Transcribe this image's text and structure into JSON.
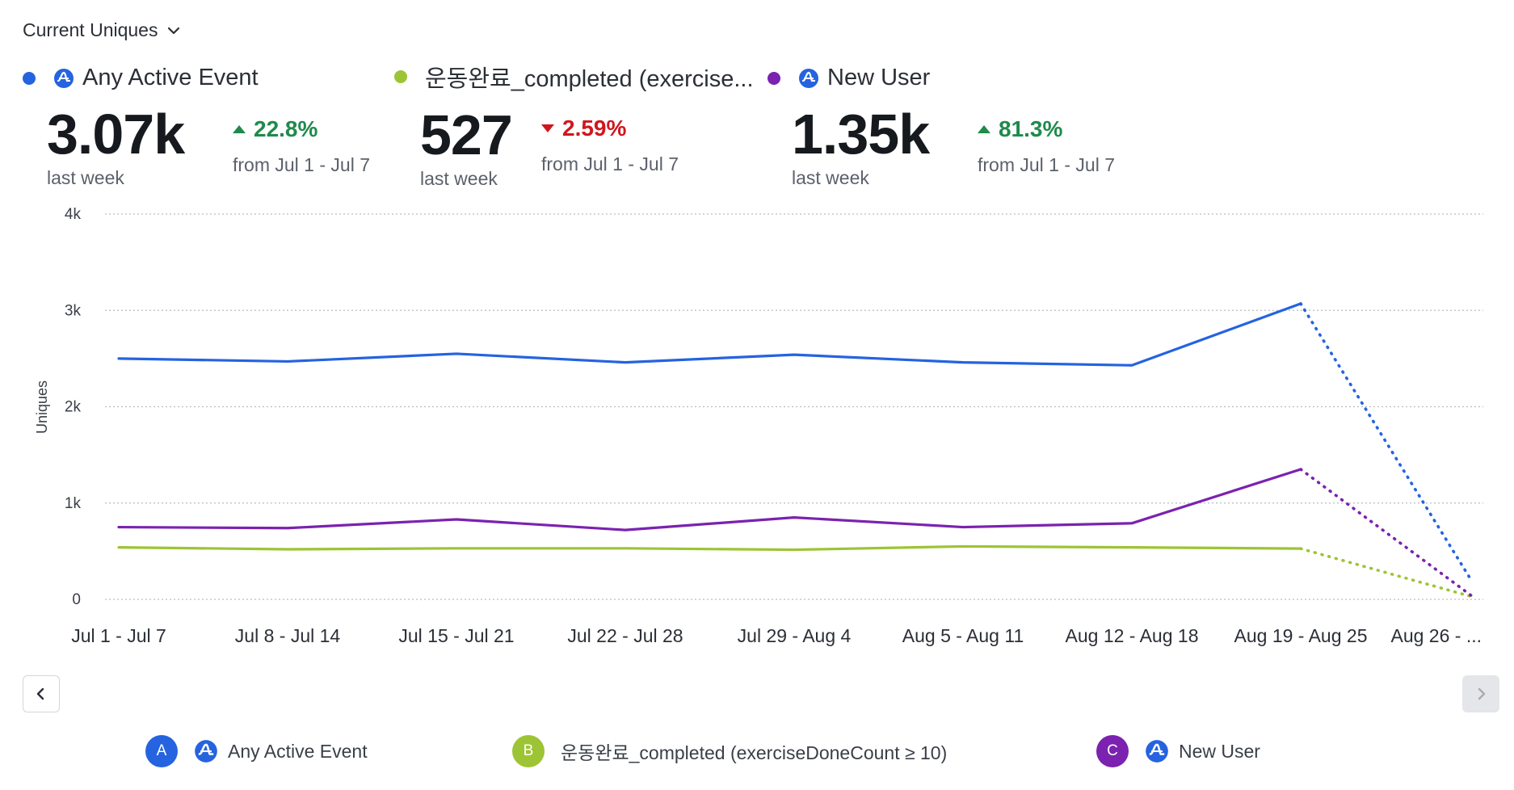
{
  "header": {
    "metric_label": "Current Uniques"
  },
  "kpis": [
    {
      "name": "Any Active Event",
      "color": "#2563e0",
      "value": "3.07k",
      "sub": "last week",
      "change": "22.8%",
      "direction": "up",
      "range": "from Jul 1 - Jul 7",
      "icon": "amplitude-icon"
    },
    {
      "name": "운동완료_completed (exercise...",
      "color": "#9dc434",
      "value": "527",
      "sub": "last week",
      "change": "2.59%",
      "direction": "down",
      "range": "from Jul 1 - Jul 7",
      "icon": "none"
    },
    {
      "name": "New User",
      "color": "#7b22b0",
      "value": "1.35k",
      "sub": "last week",
      "change": "81.3%",
      "direction": "up",
      "range": "from Jul 1 - Jul 7",
      "icon": "amplitude-icon"
    }
  ],
  "chart_data": {
    "type": "line",
    "xlabel": "",
    "ylabel": "Uniques",
    "ylim": [
      0,
      4000
    ],
    "yticks": [
      "0",
      "1k",
      "2k",
      "3k",
      "4k"
    ],
    "grid": true,
    "categories": [
      "Jul 1 - Jul 7",
      "Jul 8 - Jul 14",
      "Jul 15 - Jul 21",
      "Jul 22 - Jul 28",
      "Jul 29 - Aug 4",
      "Aug 5 - Aug 11",
      "Aug 12 - Aug 18",
      "Aug 19 - Aug 25",
      "Aug 26 - ..."
    ],
    "series": [
      {
        "name": "Any Active Event",
        "color": "#2563e0",
        "values": [
          2500,
          2470,
          2550,
          2460,
          2540,
          2460,
          2430,
          3070,
          200
        ],
        "incomplete_last": true
      },
      {
        "name": "운동완료_completed (exerciseDoneCount ≥ 10)",
        "color": "#9dc434",
        "values": [
          540,
          520,
          530,
          530,
          515,
          550,
          540,
          527,
          30
        ],
        "incomplete_last": true
      },
      {
        "name": "New User",
        "color": "#7b22b0",
        "values": [
          750,
          740,
          830,
          720,
          850,
          750,
          790,
          1350,
          40
        ],
        "incomplete_last": true
      }
    ]
  },
  "legend": [
    {
      "letter": "A",
      "label": "Any Active Event",
      "color": "#2563e0",
      "icon": "amplitude-icon"
    },
    {
      "letter": "B",
      "label": "운동완료_completed (exerciseDoneCount ≥ 10)",
      "color": "#9dc434",
      "icon": "none"
    },
    {
      "letter": "C",
      "label": "New User",
      "color": "#7b22b0",
      "icon": "amplitude-icon"
    }
  ],
  "nav": {
    "prev_icon": "chevron-left-icon",
    "next_icon": "chevron-right-icon"
  }
}
